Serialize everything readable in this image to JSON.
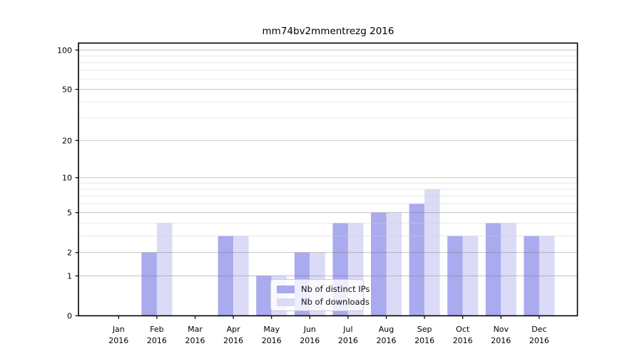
{
  "chart_data": {
    "type": "bar",
    "title": "mm74bv2mmentrezg 2016",
    "categories": [
      "Jan",
      "Feb",
      "Mar",
      "Apr",
      "May",
      "Jun",
      "Jul",
      "Aug",
      "Sep",
      "Oct",
      "Nov",
      "Dec"
    ],
    "x_second_line": "2016",
    "series": [
      {
        "name": "Nb of distinct IPs",
        "color": "#aaaaee",
        "values": [
          0,
          2,
          0,
          3,
          1,
          2,
          4,
          5,
          6,
          3,
          4,
          3
        ]
      },
      {
        "name": "Nb of downloads",
        "color": "#dbdbf7",
        "values": [
          0,
          4,
          0,
          3,
          1,
          2,
          4,
          5,
          8,
          3,
          4,
          3
        ]
      }
    ],
    "yscale": "log1p",
    "yticks_major": [
      0,
      1,
      2,
      5,
      10,
      20,
      50,
      100
    ],
    "yticks_minor": [
      3,
      4,
      6,
      7,
      8,
      9,
      30,
      40,
      60,
      70,
      80,
      90
    ],
    "ylim": [
      0,
      113
    ],
    "grid": "horizontal",
    "legend_position": "lower-center",
    "colors": {
      "axis": "#000000",
      "major_grid": "rgba(110,110,110,0.4)",
      "minor_grid": "rgba(210,210,210,0.5)",
      "tick_label": "#000000"
    }
  }
}
